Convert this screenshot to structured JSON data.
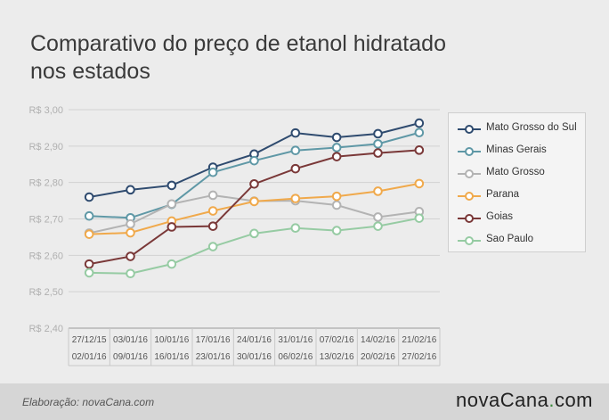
{
  "title_line1": "Comparativo do preço de etanol hidratado",
  "title_line2": "nos estados",
  "footer": {
    "credit": "Elaboração: novaCana.com",
    "brand_a": "novaCana",
    "brand_dot": ".",
    "brand_b": "com"
  },
  "chart_data": {
    "type": "line",
    "categories": [
      "27/12/15 02/01/16",
      "03/01/16 09/01/16",
      "10/01/16 16/01/16",
      "17/01/16 23/01/16",
      "24/01/16 30/01/16",
      "31/01/16 06/02/16",
      "07/02/16 13/02/16",
      "14/02/16 20/02/16",
      "21/02/16 27/02/16"
    ],
    "x_labels_top": [
      "27/12/15",
      "03/01/16",
      "10/01/16",
      "17/01/16",
      "24/01/16",
      "31/01/16",
      "07/02/16",
      "14/02/16",
      "21/02/16"
    ],
    "x_labels_bottom": [
      "02/01/16",
      "09/01/16",
      "16/01/16",
      "23/01/16",
      "30/01/16",
      "06/02/16",
      "13/02/16",
      "20/02/16",
      "27/02/16"
    ],
    "ylim": [
      2.4,
      3.0
    ],
    "yticks": [
      "R$ 2,40",
      "R$ 2,50",
      "R$ 2,60",
      "R$ 2,70",
      "R$ 2,80",
      "R$ 2,90",
      "R$ 3,00"
    ],
    "ytick_values": [
      2.4,
      2.5,
      2.6,
      2.7,
      2.8,
      2.9,
      3.0
    ],
    "legend_position": "right",
    "series": [
      {
        "name": "Mato Grosso do Sul",
        "color": "#2f4b6f",
        "values": [
          2.76,
          2.78,
          2.792,
          2.842,
          2.878,
          2.936,
          2.924,
          2.934,
          2.963
        ]
      },
      {
        "name": "Minas Gerais",
        "color": "#5f98a6",
        "values": [
          2.708,
          2.703,
          2.74,
          2.828,
          2.86,
          2.888,
          2.896,
          2.906,
          2.937
        ]
      },
      {
        "name": "Mato Grosso",
        "color": "#b3b3b3",
        "values": [
          2.661,
          2.686,
          2.741,
          2.765,
          2.749,
          2.75,
          2.738,
          2.705,
          2.72
        ]
      },
      {
        "name": "Parana",
        "color": "#f0a94b",
        "values": [
          2.658,
          2.662,
          2.694,
          2.722,
          2.748,
          2.756,
          2.762,
          2.776,
          2.797
        ]
      },
      {
        "name": "Goias",
        "color": "#7a3838",
        "values": [
          2.576,
          2.597,
          2.678,
          2.68,
          2.796,
          2.838,
          2.871,
          2.881,
          2.889
        ]
      },
      {
        "name": "Sao Paulo",
        "color": "#96cba3",
        "values": [
          2.552,
          2.55,
          2.576,
          2.624,
          2.66,
          2.675,
          2.668,
          2.68,
          2.702
        ]
      }
    ]
  }
}
